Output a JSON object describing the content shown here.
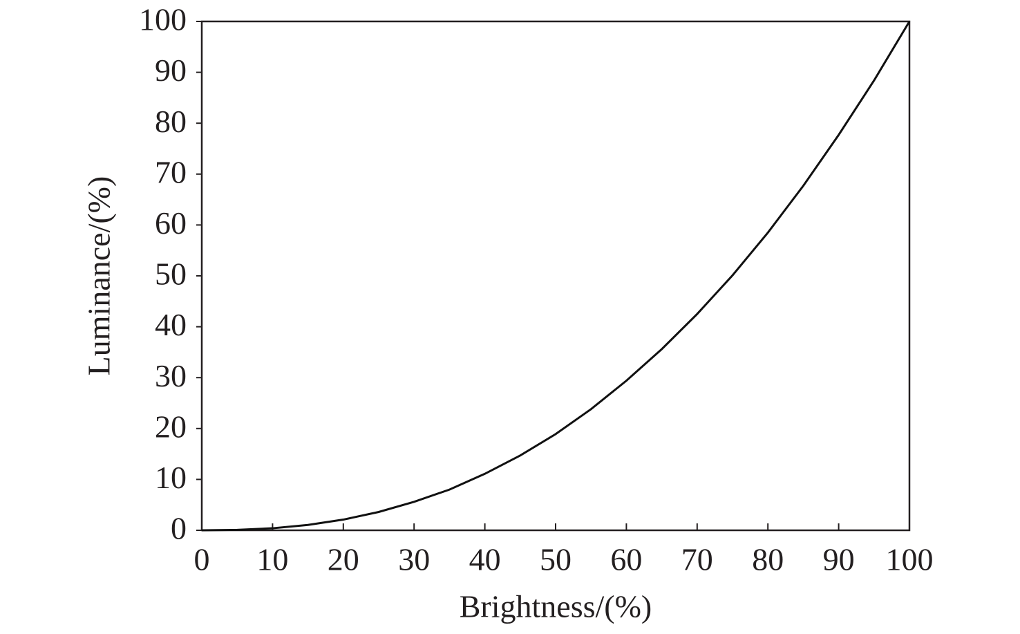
{
  "chart_data": {
    "type": "line",
    "x_label": "Brightness/(%)",
    "y_label": "Luminance/(%)",
    "x": [
      0,
      5,
      10,
      15,
      20,
      25,
      30,
      35,
      40,
      45,
      50,
      55,
      60,
      65,
      70,
      75,
      80,
      85,
      90,
      95,
      100
    ],
    "series": [
      {
        "color": "#111111",
        "values": [
          0,
          0.08,
          0.4,
          1.05,
          2.1,
          3.6,
          5.6,
          8.0,
          11.1,
          14.7,
          18.9,
          23.8,
          29.4,
          35.6,
          42.5,
          50.1,
          58.5,
          67.7,
          77.7,
          88.4,
          100
        ]
      }
    ],
    "xlim": [
      0,
      100
    ],
    "ylim": [
      0,
      100
    ],
    "xticks": [
      0,
      10,
      20,
      30,
      40,
      50,
      60,
      70,
      80,
      90,
      100
    ],
    "yticks": [
      0,
      10,
      20,
      30,
      40,
      50,
      60,
      70,
      80,
      90,
      100
    ],
    "grid": false
  }
}
